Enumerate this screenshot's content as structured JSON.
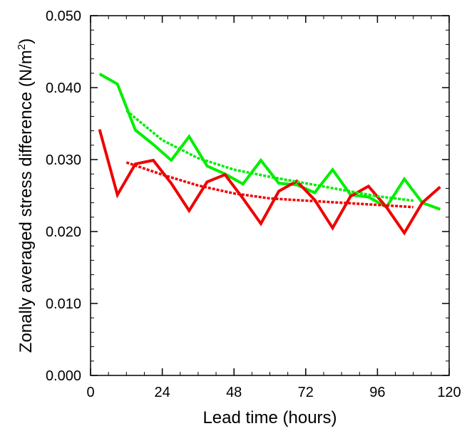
{
  "chart_data": {
    "type": "line",
    "xlabel": "Lead time (hours)",
    "ylabel": "Zonally averaged stress difference (N/m",
    "ylabel_sup": "2",
    "ylabel_close": ")",
    "xlim": [
      0,
      120
    ],
    "ylim": [
      0.0,
      0.05
    ],
    "xticks": [
      0,
      24,
      48,
      72,
      96,
      120
    ],
    "xtick_labels": [
      "0",
      "24",
      "48",
      "72",
      "96",
      "120"
    ],
    "yticks": [
      0.0,
      0.01,
      0.02,
      0.03,
      0.04,
      0.05
    ],
    "ytick_labels": [
      "0.000",
      "0.010",
      "0.020",
      "0.030",
      "0.040",
      "0.050"
    ],
    "grid": false,
    "series": [
      {
        "color": "#00ee00",
        "style": "solid",
        "x": [
          3,
          9,
          15,
          21,
          27,
          33,
          39,
          45,
          51,
          57,
          63,
          69,
          75,
          81,
          87,
          93,
          99,
          105,
          111,
          117
        ],
        "y": [
          0.0419,
          0.0405,
          0.0341,
          0.0321,
          0.0299,
          0.0332,
          0.0291,
          0.028,
          0.0266,
          0.0299,
          0.0267,
          0.0265,
          0.0254,
          0.0286,
          0.0251,
          0.0248,
          0.0234,
          0.0273,
          0.024,
          0.0231
        ]
      },
      {
        "color": "#ee0000",
        "style": "solid",
        "x": [
          3,
          9,
          15,
          21,
          27,
          33,
          39,
          45,
          51,
          57,
          63,
          69,
          75,
          81,
          87,
          93,
          99,
          105,
          111,
          117
        ],
        "y": [
          0.0342,
          0.0251,
          0.0294,
          0.0299,
          0.0267,
          0.0229,
          0.0269,
          0.0279,
          0.0246,
          0.0211,
          0.0256,
          0.027,
          0.0244,
          0.0205,
          0.0249,
          0.0263,
          0.0234,
          0.0198,
          0.024,
          0.0262
        ]
      },
      {
        "color": "#00ee00",
        "style": "dashed",
        "x": [
          12,
          24,
          36,
          48,
          60,
          72,
          84,
          96,
          108
        ],
        "y": [
          0.0368,
          0.0327,
          0.0302,
          0.0286,
          0.0276,
          0.0267,
          0.0258,
          0.0249,
          0.0243
        ]
      },
      {
        "color": "#ee0000",
        "style": "dashed",
        "x": [
          12,
          24,
          36,
          48,
          60,
          72,
          84,
          96,
          108
        ],
        "y": [
          0.0296,
          0.0279,
          0.0264,
          0.0253,
          0.0246,
          0.0243,
          0.024,
          0.0237,
          0.0234
        ]
      }
    ]
  }
}
